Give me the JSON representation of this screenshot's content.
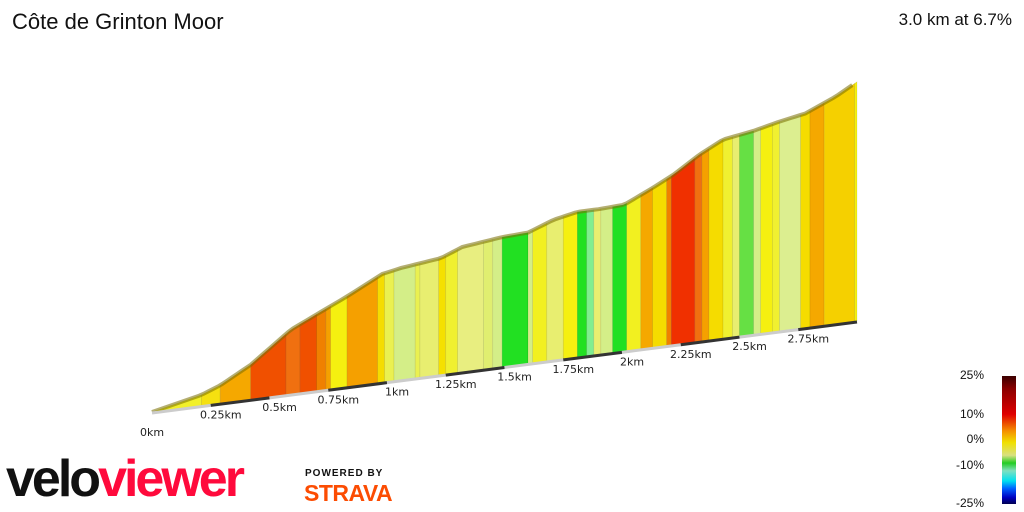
{
  "title": "Côte de Grinton Moor",
  "summary": "3.0 km at 6.7%",
  "legend": {
    "labels": [
      "25%",
      "10%",
      "0%",
      "-10%",
      "-25%"
    ]
  },
  "branding": {
    "logo_part1": "velo",
    "logo_part2": "viewer",
    "powered_by": "POWERED BY",
    "strava": "STRAVA"
  },
  "colors": {
    "velo": "#111111",
    "viewer": "#ff0a3c",
    "strava": "#fc4c02"
  },
  "chart_data": {
    "type": "area",
    "title": "Côte de Grinton Moor",
    "xlabel": "",
    "ylabel": "",
    "x_ticks": [
      "0km",
      "0.25km",
      "0.5km",
      "0.75km",
      "1km",
      "1.25km",
      "1.5km",
      "1.75km",
      "2km",
      "2.25km",
      "2.5km",
      "2.75km"
    ],
    "xlim": [
      0,
      3.0
    ],
    "profile_km": [
      0,
      0.21,
      0.29,
      0.42,
      0.59,
      0.72,
      0.83,
      0.98,
      1.06,
      1.23,
      1.32,
      1.49,
      1.6,
      1.71,
      1.81,
      1.9,
      2.01,
      2.13,
      2.22,
      2.33,
      2.43,
      2.56,
      2.67,
      2.78,
      2.91,
      3.0
    ],
    "profile_elev_m": [
      0,
      9,
      15,
      29,
      54,
      66,
      76,
      91,
      94,
      98,
      105,
      109,
      110,
      118,
      122,
      122,
      123,
      134,
      143,
      157,
      167,
      171,
      176,
      180,
      191,
      201
    ],
    "segments": [
      {
        "from": 0,
        "to": 0.21,
        "color": "#f2f02a"
      },
      {
        "from": 0.21,
        "to": 0.29,
        "color": "#f5e010"
      },
      {
        "from": 0.29,
        "to": 0.42,
        "color": "#f5a800"
      },
      {
        "from": 0.42,
        "to": 0.57,
        "color": "#f05000"
      },
      {
        "from": 0.57,
        "to": 0.63,
        "color": "#f07010"
      },
      {
        "from": 0.63,
        "to": 0.7,
        "color": "#f05000"
      },
      {
        "from": 0.7,
        "to": 0.74,
        "color": "#f08000"
      },
      {
        "from": 0.74,
        "to": 0.76,
        "color": "#f5a000"
      },
      {
        "from": 0.76,
        "to": 0.83,
        "color": "#f5f010"
      },
      {
        "from": 0.83,
        "to": 0.96,
        "color": "#f5a000"
      },
      {
        "from": 0.96,
        "to": 0.99,
        "color": "#f5dc00"
      },
      {
        "from": 0.99,
        "to": 1.03,
        "color": "#eaf050"
      },
      {
        "from": 1.03,
        "to": 1.12,
        "color": "#d4ee88"
      },
      {
        "from": 1.12,
        "to": 1.14,
        "color": "#eaf050"
      },
      {
        "from": 1.14,
        "to": 1.22,
        "color": "#e8ee70"
      },
      {
        "from": 1.22,
        "to": 1.25,
        "color": "#f5e000"
      },
      {
        "from": 1.25,
        "to": 1.3,
        "color": "#f0f030"
      },
      {
        "from": 1.3,
        "to": 1.41,
        "color": "#e8ee80"
      },
      {
        "from": 1.41,
        "to": 1.45,
        "color": "#e0ee70"
      },
      {
        "from": 1.45,
        "to": 1.49,
        "color": "#d4ee88"
      },
      {
        "from": 1.49,
        "to": 1.6,
        "color": "#22e022"
      },
      {
        "from": 1.6,
        "to": 1.62,
        "color": "#d4ee88"
      },
      {
        "from": 1.62,
        "to": 1.68,
        "color": "#f2f020"
      },
      {
        "from": 1.68,
        "to": 1.75,
        "color": "#e8ee70"
      },
      {
        "from": 1.75,
        "to": 1.81,
        "color": "#f5f010"
      },
      {
        "from": 1.81,
        "to": 1.85,
        "color": "#22e022"
      },
      {
        "from": 1.85,
        "to": 1.88,
        "color": "#80ee90"
      },
      {
        "from": 1.88,
        "to": 1.91,
        "color": "#e8ee70"
      },
      {
        "from": 1.91,
        "to": 1.96,
        "color": "#d4ee88"
      },
      {
        "from": 1.96,
        "to": 2.02,
        "color": "#22e022"
      },
      {
        "from": 2.02,
        "to": 2.08,
        "color": "#f2f020"
      },
      {
        "from": 2.08,
        "to": 2.13,
        "color": "#f5a800"
      },
      {
        "from": 2.13,
        "to": 2.19,
        "color": "#f5dc00"
      },
      {
        "from": 2.19,
        "to": 2.21,
        "color": "#f08000"
      },
      {
        "from": 2.21,
        "to": 2.31,
        "color": "#f03000"
      },
      {
        "from": 2.31,
        "to": 2.34,
        "color": "#f07010"
      },
      {
        "from": 2.34,
        "to": 2.37,
        "color": "#f5a000"
      },
      {
        "from": 2.37,
        "to": 2.43,
        "color": "#f5dc00"
      },
      {
        "from": 2.43,
        "to": 2.47,
        "color": "#f0f030"
      },
      {
        "from": 2.47,
        "to": 2.5,
        "color": "#e8ee70"
      },
      {
        "from": 2.5,
        "to": 2.56,
        "color": "#66e044"
      },
      {
        "from": 2.56,
        "to": 2.59,
        "color": "#d4ee88"
      },
      {
        "from": 2.59,
        "to": 2.64,
        "color": "#f5f010"
      },
      {
        "from": 2.64,
        "to": 2.67,
        "color": "#f0f030"
      },
      {
        "from": 2.67,
        "to": 2.76,
        "color": "#dcee90"
      },
      {
        "from": 2.76,
        "to": 2.8,
        "color": "#f5dc00"
      },
      {
        "from": 2.8,
        "to": 2.86,
        "color": "#f5a800"
      },
      {
        "from": 2.86,
        "to": 2.99,
        "color": "#f5d000"
      },
      {
        "from": 2.99,
        "to": 3.0,
        "color": "#f5f010"
      }
    ]
  }
}
